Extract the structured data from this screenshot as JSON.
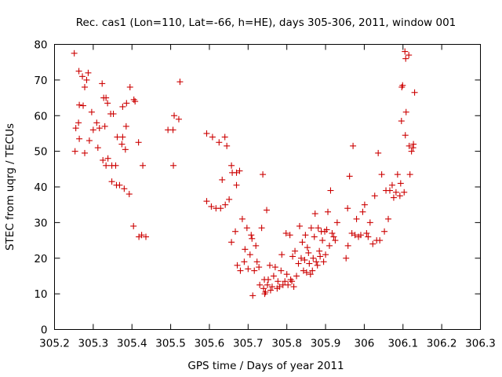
{
  "chart_data": {
    "type": "scatter",
    "title": "Rec. cas1 (Lon=110, Lat=-66, h=HE), days 305-306, 2011, window 001",
    "xlabel": "GPS time / Days of year 2011",
    "ylabel": "STEC from uqrg / TECUs",
    "xlim": [
      305.2,
      306.3
    ],
    "ylim": [
      0,
      80
    ],
    "x_ticks": [
      "305.2",
      "305.3",
      "305.4",
      "305.5",
      "305.6",
      "305.7",
      "305.8",
      "305.9",
      "306",
      "306.1",
      "306.2",
      "306.3"
    ],
    "y_ticks": [
      "0",
      "10",
      "20",
      "30",
      "40",
      "50",
      "60",
      "70",
      "80"
    ],
    "marker": "+",
    "color": "#cc0000",
    "points": [
      [
        305.251,
        77.5
      ],
      [
        305.263,
        72.5
      ],
      [
        305.272,
        71.0
      ],
      [
        305.283,
        70.0
      ],
      [
        305.287,
        72.0
      ],
      [
        305.264,
        63.0
      ],
      [
        305.274,
        62.8
      ],
      [
        305.278,
        68.0
      ],
      [
        305.255,
        56.5
      ],
      [
        305.262,
        58.0
      ],
      [
        305.264,
        53.5
      ],
      [
        305.253,
        50.0
      ],
      [
        305.278,
        49.5
      ],
      [
        305.29,
        53.0
      ],
      [
        305.296,
        61.0
      ],
      [
        305.3,
        56.0
      ],
      [
        305.309,
        58.0
      ],
      [
        305.316,
        56.5
      ],
      [
        305.323,
        69.0
      ],
      [
        305.327,
        65.0
      ],
      [
        305.333,
        65.0
      ],
      [
        305.337,
        63.5
      ],
      [
        305.345,
        60.5
      ],
      [
        305.352,
        60.5
      ],
      [
        305.33,
        57.0
      ],
      [
        305.312,
        51.0
      ],
      [
        305.325,
        47.5
      ],
      [
        305.333,
        46.0
      ],
      [
        305.338,
        48.0
      ],
      [
        305.348,
        46.0
      ],
      [
        305.358,
        46.0
      ],
      [
        305.362,
        54.0
      ],
      [
        305.348,
        41.5
      ],
      [
        305.36,
        40.5
      ],
      [
        305.368,
        40.5
      ],
      [
        305.376,
        54.0
      ],
      [
        305.374,
        52.0
      ],
      [
        305.383,
        50.5
      ],
      [
        305.385,
        57.0
      ],
      [
        305.386,
        63.5
      ],
      [
        305.376,
        62.5
      ],
      [
        305.395,
        68.0
      ],
      [
        305.405,
        64.5
      ],
      [
        305.408,
        64.0
      ],
      [
        305.38,
        39.5
      ],
      [
        305.393,
        38.0
      ],
      [
        305.417,
        52.5
      ],
      [
        305.404,
        29.0
      ],
      [
        305.418,
        26.0
      ],
      [
        305.425,
        26.5
      ],
      [
        305.436,
        26.0
      ],
      [
        305.428,
        46.0
      ],
      [
        305.493,
        56.0
      ],
      [
        305.506,
        56.0
      ],
      [
        305.507,
        46.0
      ],
      [
        305.509,
        60.0
      ],
      [
        305.521,
        59.0
      ],
      [
        305.524,
        69.5
      ],
      [
        305.593,
        55.0
      ],
      [
        305.593,
        36.0
      ],
      [
        305.608,
        54.0
      ],
      [
        305.605,
        34.5
      ],
      [
        305.617,
        34.0
      ],
      [
        305.625,
        52.5
      ],
      [
        305.629,
        34.0
      ],
      [
        305.633,
        42.0
      ],
      [
        305.64,
        54.0
      ],
      [
        305.645,
        51.5
      ],
      [
        305.641,
        35.0
      ],
      [
        305.651,
        36.5
      ],
      [
        305.657,
        46.0
      ],
      [
        305.659,
        44.0
      ],
      [
        305.67,
        44.0
      ],
      [
        305.678,
        44.5
      ],
      [
        305.67,
        40.5
      ],
      [
        305.657,
        24.5
      ],
      [
        305.667,
        27.5
      ],
      [
        305.672,
        18.0
      ],
      [
        305.68,
        16.5
      ],
      [
        305.685,
        31.0
      ],
      [
        305.69,
        19.0
      ],
      [
        305.692,
        22.5
      ],
      [
        305.697,
        28.5
      ],
      [
        305.7,
        17.0
      ],
      [
        305.705,
        21.0
      ],
      [
        305.708,
        26.5
      ],
      [
        305.71,
        25.5
      ],
      [
        305.712,
        9.5
      ],
      [
        305.716,
        16.5
      ],
      [
        305.72,
        23.5
      ],
      [
        305.723,
        19.0
      ],
      [
        305.728,
        17.5
      ],
      [
        305.73,
        12.5
      ],
      [
        305.735,
        28.5
      ],
      [
        305.738,
        43.5
      ],
      [
        305.742,
        14.0
      ],
      [
        305.745,
        10.5
      ],
      [
        305.748,
        33.5
      ],
      [
        305.75,
        12.5
      ],
      [
        305.74,
        11.5
      ],
      [
        305.743,
        10.0
      ],
      [
        305.752,
        14.0
      ],
      [
        305.756,
        18.0
      ],
      [
        305.758,
        11.0
      ],
      [
        305.762,
        12.0
      ],
      [
        305.766,
        15.0
      ],
      [
        305.77,
        17.5
      ],
      [
        305.775,
        11.5
      ],
      [
        305.777,
        13.5
      ],
      [
        305.781,
        12.0
      ],
      [
        305.785,
        16.5
      ],
      [
        305.787,
        21.0
      ],
      [
        305.79,
        12.5
      ],
      [
        305.795,
        13.5
      ],
      [
        305.798,
        27.0
      ],
      [
        305.8,
        15.5
      ],
      [
        305.803,
        12.5
      ],
      [
        305.808,
        26.5
      ],
      [
        305.81,
        14.0
      ],
      [
        305.813,
        13.5
      ],
      [
        305.815,
        20.5
      ],
      [
        305.818,
        12.0
      ],
      [
        305.821,
        22.0
      ],
      [
        305.825,
        15.0
      ],
      [
        305.83,
        18.5
      ],
      [
        305.833,
        29.0
      ],
      [
        305.837,
        20.0
      ],
      [
        305.84,
        24.5
      ],
      [
        305.843,
        16.5
      ],
      [
        305.846,
        19.5
      ],
      [
        305.848,
        26.5
      ],
      [
        305.851,
        16.0
      ],
      [
        305.853,
        23.0
      ],
      [
        305.856,
        21.5
      ],
      [
        305.858,
        18.5
      ],
      [
        305.861,
        15.5
      ],
      [
        305.863,
        28.5
      ],
      [
        305.866,
        16.5
      ],
      [
        305.868,
        20.0
      ],
      [
        305.871,
        26.0
      ],
      [
        305.873,
        32.5
      ],
      [
        305.876,
        19.0
      ],
      [
        305.879,
        18.0
      ],
      [
        305.881,
        28.5
      ],
      [
        305.884,
        22.0
      ],
      [
        305.886,
        20.5
      ],
      [
        305.889,
        27.5
      ],
      [
        305.892,
        25.0
      ],
      [
        305.895,
        19.0
      ],
      [
        305.898,
        27.5
      ],
      [
        305.9,
        21.0
      ],
      [
        305.903,
        28.0
      ],
      [
        305.906,
        33.0
      ],
      [
        305.91,
        23.5
      ],
      [
        305.913,
        39.0
      ],
      [
        305.917,
        27.0
      ],
      [
        305.921,
        26.0
      ],
      [
        305.925,
        25.0
      ],
      [
        305.93,
        30.0
      ],
      [
        305.953,
        20.0
      ],
      [
        305.957,
        34.0
      ],
      [
        305.958,
        23.5
      ],
      [
        305.962,
        43.0
      ],
      [
        305.971,
        51.5
      ],
      [
        305.968,
        27.0
      ],
      [
        305.976,
        26.5
      ],
      [
        305.98,
        31.0
      ],
      [
        305.985,
        26.0
      ],
      [
        305.991,
        26.5
      ],
      [
        305.996,
        33.0
      ],
      [
        306.001,
        35.0
      ],
      [
        306.006,
        27.0
      ],
      [
        306.01,
        26.0
      ],
      [
        306.015,
        30.0
      ],
      [
        306.022,
        24.0
      ],
      [
        306.027,
        37.5
      ],
      [
        306.032,
        25.0
      ],
      [
        306.036,
        49.5
      ],
      [
        306.04,
        25.0
      ],
      [
        306.045,
        43.5
      ],
      [
        306.052,
        27.5
      ],
      [
        306.056,
        39.0
      ],
      [
        306.062,
        31.0
      ],
      [
        306.066,
        39.0
      ],
      [
        306.072,
        40.5
      ],
      [
        306.076,
        37.0
      ],
      [
        306.082,
        38.5
      ],
      [
        306.086,
        43.5
      ],
      [
        306.092,
        37.5
      ],
      [
        306.094,
        41.0
      ],
      [
        306.096,
        58.5
      ],
      [
        306.097,
        68.0
      ],
      [
        306.099,
        68.5
      ],
      [
        306.103,
        38.5
      ],
      [
        306.106,
        54.5
      ],
      [
        306.108,
        61.0
      ],
      [
        306.105,
        78.0
      ],
      [
        306.107,
        76.0
      ],
      [
        306.115,
        77.0
      ],
      [
        306.116,
        51.5
      ],
      [
        306.118,
        43.5
      ],
      [
        306.122,
        50.0
      ],
      [
        306.126,
        51.0
      ],
      [
        306.127,
        52.0
      ],
      [
        306.13,
        66.5
      ]
    ]
  }
}
